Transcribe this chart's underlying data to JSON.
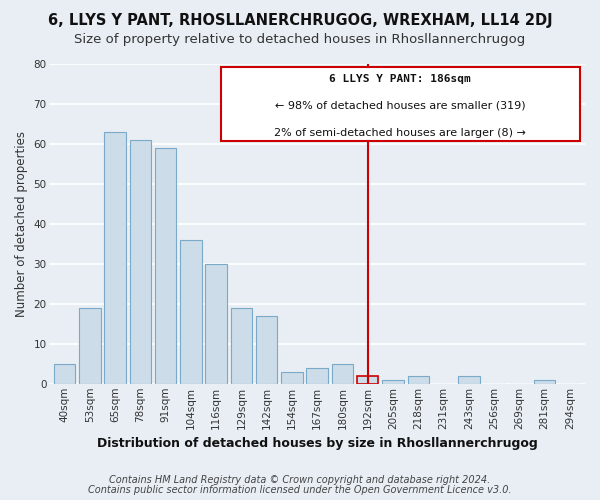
{
  "title": "6, LLYS Y PANT, RHOSLLANERCHRUGOG, WREXHAM, LL14 2DJ",
  "subtitle": "Size of property relative to detached houses in Rhosllannerchrugog",
  "xlabel": "Distribution of detached houses by size in Rhosllannerchrugog",
  "ylabel": "Number of detached properties",
  "bar_labels": [
    "40sqm",
    "53sqm",
    "65sqm",
    "78sqm",
    "91sqm",
    "104sqm",
    "116sqm",
    "129sqm",
    "142sqm",
    "154sqm",
    "167sqm",
    "180sqm",
    "192sqm",
    "205sqm",
    "218sqm",
    "231sqm",
    "243sqm",
    "256sqm",
    "269sqm",
    "281sqm",
    "294sqm"
  ],
  "bar_values": [
    5,
    19,
    63,
    61,
    59,
    36,
    30,
    19,
    17,
    3,
    4,
    5,
    2,
    1,
    2,
    0,
    2,
    0,
    0,
    1,
    0
  ],
  "bar_color": "#ccdce8",
  "bar_edge_color": "#7aaac8",
  "highlight_bar_index": 12,
  "highlight_bar_edge_color": "#cc0000",
  "vline_color": "#cc0000",
  "annotation_title": "6 LLYS Y PANT: 186sqm",
  "annotation_line1": "← 98% of detached houses are smaller (319)",
  "annotation_line2": "2% of semi-detached houses are larger (8) →",
  "annotation_box_color": "#ffffff",
  "annotation_border_color": "#cc0000",
  "ylim": [
    0,
    80
  ],
  "yticks": [
    0,
    10,
    20,
    30,
    40,
    50,
    60,
    70,
    80
  ],
  "footer1": "Contains HM Land Registry data © Crown copyright and database right 2024.",
  "footer2": "Contains public sector information licensed under the Open Government Licence v3.0.",
  "background_color": "#e8eef4",
  "grid_color": "#ffffff",
  "title_fontsize": 10.5,
  "subtitle_fontsize": 9.5,
  "axis_label_fontsize": 8.5,
  "tick_fontsize": 7.5,
  "annotation_fontsize": 8,
  "footer_fontsize": 7
}
